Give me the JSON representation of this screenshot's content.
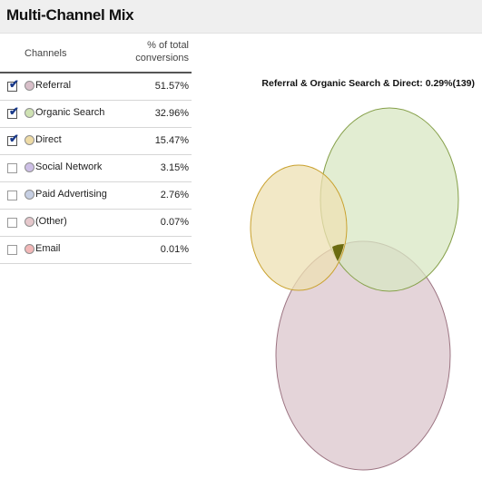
{
  "title": "Multi-Channel Mix",
  "table": {
    "col_channels": "Channels",
    "col_pct_line1": "% of total",
    "col_pct_line2": "conversions",
    "rows": [
      {
        "checked": true,
        "label": "Referral",
        "pct": "51.57%",
        "color": "#d8bfc9"
      },
      {
        "checked": true,
        "label": "Organic Search",
        "pct": "32.96%",
        "color": "#cfe2b3"
      },
      {
        "checked": true,
        "label": "Direct",
        "pct": "15.47%",
        "color": "#eedba6"
      },
      {
        "checked": false,
        "label": "Social Network",
        "pct": "3.15%",
        "color": "#cdbfe6"
      },
      {
        "checked": false,
        "label": "Paid Advertising",
        "pct": "2.76%",
        "color": "#c6cfe3"
      },
      {
        "checked": false,
        "label": "(Other)",
        "pct": "0.07%",
        "color": "#e6c8cc"
      },
      {
        "checked": false,
        "label": "Email",
        "pct": "0.01%",
        "color": "#f2b8b8"
      }
    ]
  },
  "venn": {
    "label": "Referral & Organic Search & Direct: 0.29%(139)",
    "colors": {
      "referral_fill": "#dbc5cc",
      "referral_stroke": "#9c7482",
      "organic_fill": "#d8e7c3",
      "organic_stroke": "#86a04a",
      "direct_fill": "#ede0b3",
      "direct_stroke": "#c9a12e",
      "overlap_dark": "#6b6b10"
    }
  }
}
